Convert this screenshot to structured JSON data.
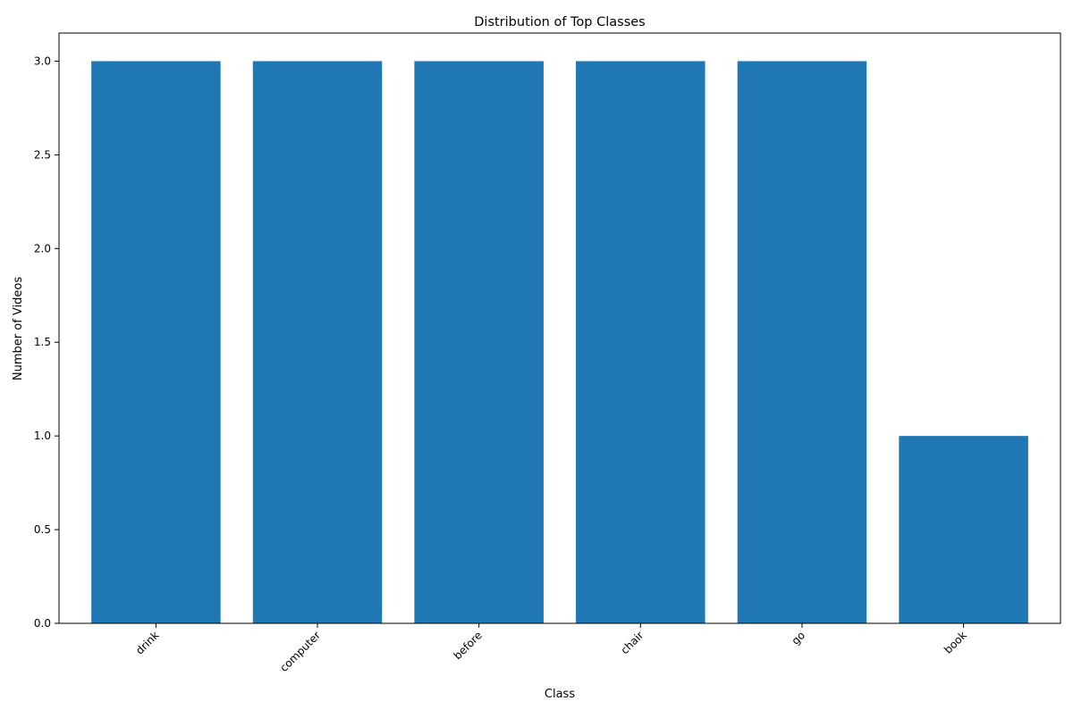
{
  "chart_data": {
    "type": "bar",
    "title": "Distribution of Top Classes",
    "xlabel": "Class",
    "ylabel": "Number of Videos",
    "categories": [
      "drink",
      "computer",
      "before",
      "chair",
      "go",
      "book"
    ],
    "values": [
      3,
      3,
      3,
      3,
      3,
      1
    ],
    "ylim": [
      0,
      3.15
    ],
    "yticks": [
      0,
      0.5,
      1,
      1.5,
      2,
      2.5,
      3
    ],
    "ytick_labels": [
      "0.0",
      "0.5",
      "1.0",
      "1.5",
      "2.0",
      "2.5",
      "3.0"
    ],
    "bar_color": "#1f77b4",
    "grid": false,
    "legend": "none"
  }
}
